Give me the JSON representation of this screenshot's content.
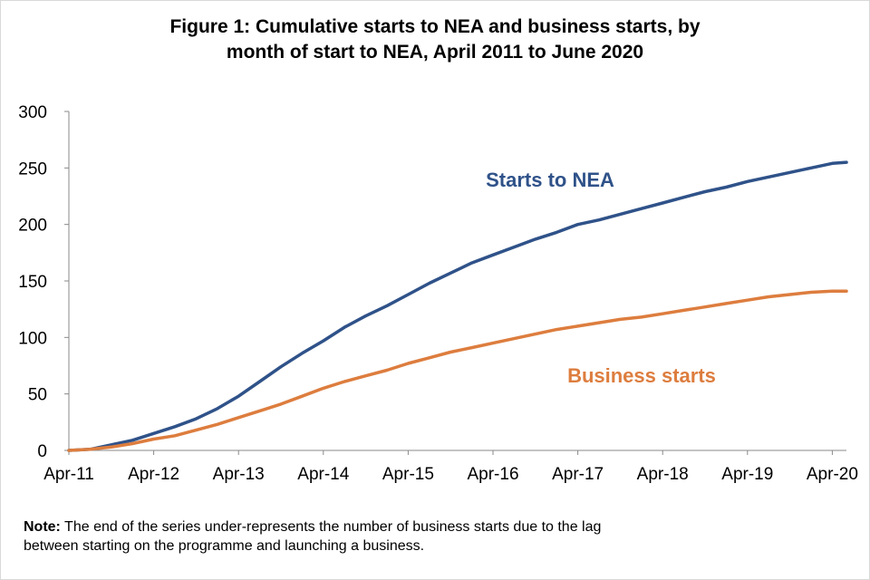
{
  "title_line1": "Figure 1: Cumulative starts to NEA and business starts, by",
  "title_line2": "month of start to NEA, April 2011 to June 2020",
  "note_label": "Note:",
  "note_line1": "The end of the series under-represents the number of business starts due to the lag",
  "note_line2": "between starting on the programme and launching a business.",
  "colors": {
    "nea": "#2f5289",
    "business": "#dd7d3e",
    "axis": "#898989"
  },
  "chart_data": {
    "type": "line",
    "title": "Figure 1: Cumulative starts to NEA and business starts, by month of start to NEA, April 2011 to June 2020",
    "xlabel": "",
    "ylabel": "",
    "x_start": "Apr-11",
    "x_end": "Jun-20",
    "x_tick_labels": [
      "Apr-11",
      "Apr-12",
      "Apr-13",
      "Apr-14",
      "Apr-15",
      "Apr-16",
      "Apr-17",
      "Apr-18",
      "Apr-19",
      "Apr-20"
    ],
    "y_ticks": [
      0,
      50,
      100,
      150,
      200,
      250,
      300
    ],
    "ylim": [
      0,
      300
    ],
    "grid": false,
    "legend": "inline labels",
    "x": [
      "Apr-11",
      "Jul-11",
      "Oct-11",
      "Jan-12",
      "Apr-12",
      "Jul-12",
      "Oct-12",
      "Jan-13",
      "Apr-13",
      "Jul-13",
      "Oct-13",
      "Jan-14",
      "Apr-14",
      "Jul-14",
      "Oct-14",
      "Jan-15",
      "Apr-15",
      "Jul-15",
      "Oct-15",
      "Jan-16",
      "Apr-16",
      "Jul-16",
      "Oct-16",
      "Jan-17",
      "Apr-17",
      "Jul-17",
      "Oct-17",
      "Jan-18",
      "Apr-18",
      "Jul-18",
      "Oct-18",
      "Jan-19",
      "Apr-19",
      "Jul-19",
      "Oct-19",
      "Jan-20",
      "Apr-20",
      "Jun-20"
    ],
    "series": [
      {
        "name": "Starts to NEA",
        "values": [
          0,
          1,
          5,
          9,
          15,
          21,
          28,
          37,
          48,
          61,
          74,
          86,
          97,
          109,
          119,
          128,
          138,
          148,
          157,
          166,
          173,
          180,
          187,
          193,
          200,
          204,
          209,
          214,
          219,
          224,
          229,
          233,
          238,
          242,
          246,
          250,
          254,
          255
        ]
      },
      {
        "name": "Business starts",
        "values": [
          0,
          1,
          3,
          6,
          10,
          13,
          18,
          23,
          29,
          35,
          41,
          48,
          55,
          61,
          66,
          71,
          77,
          82,
          87,
          91,
          95,
          99,
          103,
          107,
          110,
          113,
          116,
          118,
          121,
          124,
          127,
          130,
          133,
          136,
          138,
          140,
          141,
          141
        ]
      }
    ]
  }
}
